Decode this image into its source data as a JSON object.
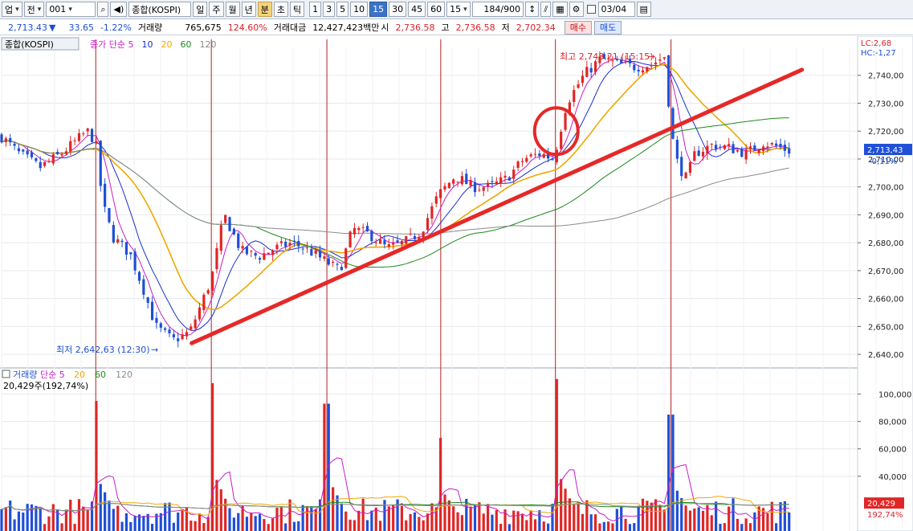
{
  "toolbar": {
    "market": "업",
    "mode": "전",
    "code": "001",
    "name": "종합(KOSPI)",
    "periods": [
      "일",
      "주",
      "월",
      "년",
      "분",
      "초",
      "틱"
    ],
    "active_period": "분",
    "intervals": [
      "1",
      "3",
      "5",
      "10",
      "15",
      "30",
      "45",
      "60"
    ],
    "active_interval": "15",
    "interval_value": "15",
    "count": "184",
    "total": "/900",
    "date": "03/04"
  },
  "quote": {
    "price": "2,713.43",
    "change": "33.65",
    "change_pct": "-1.22%",
    "volume_label": "거래량",
    "volume": "765,675",
    "volume_pct": "124.60%",
    "amount_label": "거래대금",
    "amount": "12,427,423백만",
    "open_label": "시",
    "open": "2,736.58",
    "high_label": "고",
    "high": "2,736.58",
    "low_label": "저",
    "low": "2,702.34",
    "buy_label": "매수",
    "sell_label": "매도"
  },
  "colors": {
    "up": "#e02626",
    "down": "#1f4fd6",
    "ma5": "#c81ec8",
    "ma10": "#1a2ec8",
    "ma20": "#f0a800",
    "ma60": "#1e8a1e",
    "ma120": "#8a8a8a",
    "trendline": "#e62828",
    "vline": "#b02020"
  },
  "chart_data": [
    {
      "type": "candlestick",
      "title": "종합(KOSPI)",
      "legend": [
        {
          "name": "종가 단순",
          "color": "#c81ec8"
        },
        {
          "name": "5",
          "color": "#c81ec8"
        },
        {
          "name": "10",
          "color": "#1a2ec8"
        },
        {
          "name": "20",
          "color": "#f0a800"
        },
        {
          "name": "60",
          "color": "#1e8a1e"
        },
        {
          "name": "120",
          "color": "#8a8a8a"
        }
      ],
      "ylim": [
        2636,
        2750
      ],
      "yticks": [
        2640,
        2650,
        2660,
        2670,
        2680,
        2690,
        2700,
        2710,
        2720,
        2730,
        2740
      ],
      "ytick_labels": [
        "2,640,00",
        "2,650,00",
        "2,660,00",
        "2,670,00",
        "2,680,00",
        "2,690,00",
        "2,700,00",
        "2,710,00",
        "2,720,00",
        "2,730,00",
        "2,740,00"
      ],
      "max_label": "최고 2,748,21 (15:15)",
      "min_label": "최저 2,642,63 (12:30)",
      "current_label": "2,713,43",
      "current_value": 2713.43,
      "current_pct": "-0,11%",
      "lc_label": "LC:2,68",
      "hc_label": "HC:-1,27",
      "trendlines": [
        {
          "x": [
            0.222,
            0.935
          ],
          "y": [
            2644,
            2742
          ]
        }
      ],
      "circle_annotation": {
        "x": 0.648,
        "y": 2720
      },
      "session_lines_x": [
        0.11,
        0.245,
        0.38,
        0.513,
        0.647,
        0.782
      ],
      "anchors_close": [
        [
          0.0,
          2718
        ],
        [
          0.02,
          2712
        ],
        [
          0.045,
          2707
        ],
        [
          0.07,
          2712
        ],
        [
          0.1,
          2720
        ],
        [
          0.11,
          2716
        ],
        [
          0.118,
          2694
        ],
        [
          0.13,
          2682
        ],
        [
          0.15,
          2676
        ],
        [
          0.165,
          2664
        ],
        [
          0.18,
          2650
        ],
        [
          0.2,
          2645
        ],
        [
          0.22,
          2648
        ],
        [
          0.245,
          2667
        ],
        [
          0.26,
          2690
        ],
        [
          0.28,
          2677
        ],
        [
          0.3,
          2675
        ],
        [
          0.32,
          2678
        ],
        [
          0.34,
          2680
        ],
        [
          0.36,
          2677
        ],
        [
          0.38,
          2673
        ],
        [
          0.395,
          2670
        ],
        [
          0.41,
          2685
        ],
        [
          0.43,
          2683
        ],
        [
          0.45,
          2678
        ],
        [
          0.47,
          2680
        ],
        [
          0.49,
          2684
        ],
        [
          0.51,
          2697
        ],
        [
          0.53,
          2704
        ],
        [
          0.55,
          2700
        ],
        [
          0.57,
          2700
        ],
        [
          0.59,
          2703
        ],
        [
          0.61,
          2710
        ],
        [
          0.63,
          2712
        ],
        [
          0.645,
          2710
        ],
        [
          0.66,
          2730
        ],
        [
          0.68,
          2740
        ],
        [
          0.7,
          2746
        ],
        [
          0.72,
          2744
        ],
        [
          0.74,
          2743
        ],
        [
          0.76,
          2744
        ],
        [
          0.775,
          2747
        ],
        [
          0.782,
          2720
        ],
        [
          0.79,
          2708
        ],
        [
          0.8,
          2703
        ],
        [
          0.81,
          2712
        ],
        [
          0.83,
          2715
        ],
        [
          0.85,
          2714
        ],
        [
          0.87,
          2712
        ],
        [
          0.89,
          2716
        ],
        [
          0.91,
          2714
        ],
        [
          0.92,
          2713
        ]
      ],
      "n_bars": 184
    },
    {
      "type": "bar",
      "title": "거래량",
      "legend": [
        {
          "name": "거래량",
          "color": "#1f4fd6"
        },
        {
          "name": "단순 5",
          "color": "#c81ec8"
        },
        {
          "name": "20",
          "color": "#f0a800"
        },
        {
          "name": "60",
          "color": "#1e8a1e"
        },
        {
          "name": "120",
          "color": "#8a8a8a"
        }
      ],
      "info_label": "20,429주(192,74%)",
      "ylim": [
        0,
        115000
      ],
      "yticks": [
        40000,
        60000,
        80000,
        100000
      ],
      "ytick_labels": [
        "40,000",
        "60,000",
        "80,000",
        "100,000"
      ],
      "current_label": "20,429",
      "current_value": 20429,
      "current_pct": "192,74%",
      "spikes": [
        {
          "x": 0.11,
          "value": 95000
        },
        {
          "x": 0.245,
          "value": 108000
        },
        {
          "x": 0.38,
          "value": 93000
        },
        {
          "x": 0.513,
          "value": 68000
        },
        {
          "x": 0.647,
          "value": 111000
        },
        {
          "x": 0.782,
          "value": 85000
        }
      ],
      "base_range": [
        5000,
        40000
      ]
    }
  ]
}
